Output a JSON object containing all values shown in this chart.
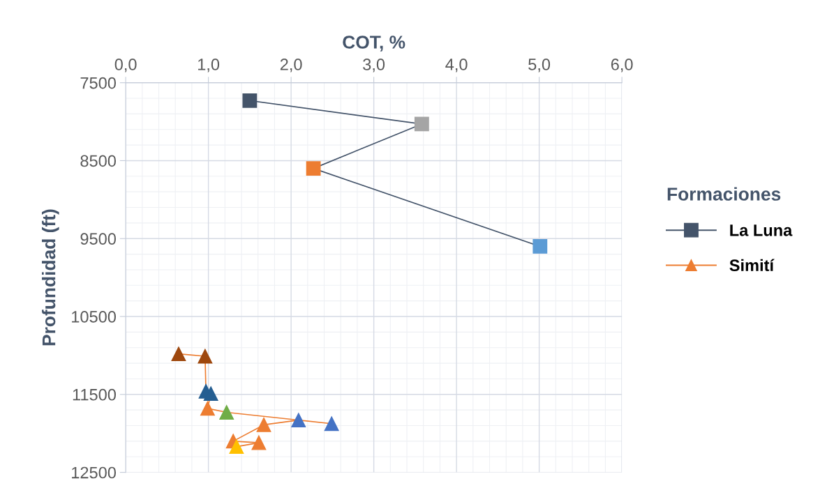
{
  "chart_data": {
    "type": "line",
    "xlabel": "COT, %",
    "ylabel": "Profundidad (ft)",
    "legend_title": "Formaciones",
    "xlim": [
      0,
      6
    ],
    "xticks": [
      {
        "value": 0,
        "label": "0,0"
      },
      {
        "value": 1,
        "label": "1,0"
      },
      {
        "value": 2,
        "label": "2,0"
      },
      {
        "value": 3,
        "label": "3,0"
      },
      {
        "value": 4,
        "label": "4,0"
      },
      {
        "value": 5,
        "label": "5,0"
      },
      {
        "value": 6,
        "label": "6,0"
      }
    ],
    "ylim": [
      12500,
      7500
    ],
    "yticks": [
      7500,
      8500,
      9500,
      10500,
      11500,
      12500
    ],
    "grid": true,
    "legend": "right",
    "line_style": "solid",
    "series": [
      {
        "name": "La Luna",
        "marker": "square",
        "color": "#44546a",
        "x": [
          1.5,
          3.58,
          2.27,
          5.01
        ],
        "values": [
          7730,
          8030,
          8600,
          9600
        ],
        "colors": [
          "#44546a",
          "#a5a5a5",
          "#ed7d31",
          "#5b9bd5"
        ]
      },
      {
        "name": "Simití",
        "marker": "triangle",
        "color": "#ed7d31",
        "x": [
          0.64,
          0.96,
          0.97,
          1.03,
          0.99,
          1.22,
          2.49,
          2.09,
          1.67,
          1.3,
          1.61,
          1.34
        ],
        "values": [
          10980,
          11010,
          11460,
          11490,
          11680,
          11730,
          11875,
          11830,
          11890,
          12100,
          12120,
          12170
        ],
        "colors": [
          "#9e480e",
          "#9e480e",
          "#255e91",
          "#255e91",
          "#ed7d31",
          "#70ad47",
          "#4472c4",
          "#4472c4",
          "#ed7d31",
          "#ed7d31",
          "#ed7d31",
          "#ffc000"
        ]
      }
    ]
  }
}
